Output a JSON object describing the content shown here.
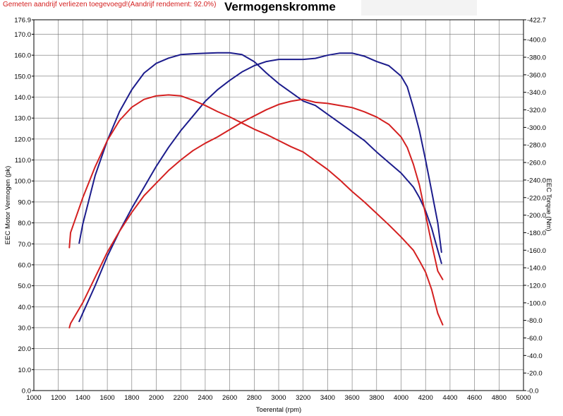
{
  "header": {
    "note": "Gemeten aandrijf verliezen toegevoegd!(Aandrijf rendement: 92.0%)",
    "title": "Vermogenskromme"
  },
  "colors": {
    "power_torque_before": "#1c1c8c",
    "power_torque_after": "#d42020",
    "grid": "#707070"
  },
  "chart_data": {
    "type": "line",
    "title": "Vermogenskromme",
    "xlabel": "Toerental (rpm)",
    "ylabel": "EEC Motor Vermogen (pk)",
    "y2label": "EEC Torque (Nm)",
    "xlim": [
      1000,
      5000
    ],
    "ylim": [
      0,
      176.9
    ],
    "y2lim": [
      0,
      422.7
    ],
    "grid": true,
    "x_ticks": [
      "1000",
      "1200",
      "1400",
      "1600",
      "1800",
      "2000",
      "2200",
      "2400",
      "2600",
      "2800",
      "3000",
      "3200",
      "3400",
      "3600",
      "3800",
      "4000",
      "4200",
      "4400",
      "4600",
      "4800",
      "5000"
    ],
    "y_ticks": [
      {
        "v": 0,
        "label": "0.0"
      },
      {
        "v": 10,
        "label": "10.0"
      },
      {
        "v": 20,
        "label": "20.0"
      },
      {
        "v": 30,
        "label": "30.0"
      },
      {
        "v": 40,
        "label": "40.0"
      },
      {
        "v": 50,
        "label": "50.0"
      },
      {
        "v": 60,
        "label": "60.0"
      },
      {
        "v": 70,
        "label": "70.0"
      },
      {
        "v": 80,
        "label": "80.0"
      },
      {
        "v": 90,
        "label": "90.0"
      },
      {
        "v": 100,
        "label": "100.0"
      },
      {
        "v": 110,
        "label": "110.0"
      },
      {
        "v": 120,
        "label": "120.0"
      },
      {
        "v": 130,
        "label": "130.0"
      },
      {
        "v": 140,
        "label": "140.0"
      },
      {
        "v": 150,
        "label": "150.0"
      },
      {
        "v": 160,
        "label": "160.0"
      },
      {
        "v": 170,
        "label": "170.0"
      },
      {
        "v": 176.9,
        "label": "176.9"
      }
    ],
    "y2_ticks": [
      {
        "v": 0,
        "label": "0.0"
      },
      {
        "v": 20,
        "label": "20.0"
      },
      {
        "v": 40,
        "label": "40.0"
      },
      {
        "v": 60,
        "label": "60.0"
      },
      {
        "v": 80,
        "label": "80.0"
      },
      {
        "v": 100,
        "label": "100.0"
      },
      {
        "v": 120,
        "label": "120.0"
      },
      {
        "v": 140,
        "label": "140.0"
      },
      {
        "v": 160,
        "label": "160.0"
      },
      {
        "v": 180,
        "label": "180.0"
      },
      {
        "v": 200,
        "label": "200.0"
      },
      {
        "v": 220,
        "label": "220.0"
      },
      {
        "v": 240,
        "label": "240.0"
      },
      {
        "v": 260,
        "label": "260.0"
      },
      {
        "v": 280,
        "label": "280.0"
      },
      {
        "v": 300,
        "label": "300.0"
      },
      {
        "v": 320,
        "label": "320.0"
      },
      {
        "v": 340,
        "label": "340.0"
      },
      {
        "v": 360,
        "label": "360.0"
      },
      {
        "v": 380,
        "label": "380.0"
      },
      {
        "v": 400,
        "label": "400.0"
      },
      {
        "v": 422.7,
        "label": "422.7"
      }
    ],
    "series": [
      {
        "color": "#1c1c8c",
        "axis": "left",
        "x": [
          1370,
          1400,
          1500,
          1600,
          1700,
          1800,
          1900,
          2000,
          2100,
          2200,
          2300,
          2400,
          2500,
          2600,
          2700,
          2800,
          2900,
          3000,
          3100,
          3200,
          3300,
          3400,
          3500,
          3600,
          3700,
          3800,
          3900,
          4000,
          4050,
          4100,
          4150,
          4200,
          4250,
          4300,
          4330
        ],
        "y": [
          33,
          37,
          50,
          64,
          76,
          87,
          97,
          107,
          116,
          124,
          131,
          138,
          143.5,
          148,
          152,
          155,
          157,
          158,
          158,
          158,
          158.5,
          160,
          161,
          161,
          159.5,
          157,
          155,
          150,
          145,
          135,
          124,
          110,
          95,
          80,
          66
        ]
      },
      {
        "color": "#1c1c8c",
        "axis": "right",
        "x": [
          1370,
          1400,
          1500,
          1600,
          1700,
          1800,
          1900,
          2000,
          2100,
          2200,
          2300,
          2400,
          2500,
          2600,
          2700,
          2800,
          2900,
          3000,
          3100,
          3200,
          3300,
          3400,
          3500,
          3600,
          3700,
          3800,
          3900,
          4000,
          4100,
          4150,
          4200,
          4250,
          4300,
          4330
        ],
        "y": [
          168,
          190,
          245,
          285,
          318,
          343,
          362,
          373,
          379,
          383,
          384,
          384.5,
          385,
          385,
          383,
          375,
          362,
          350,
          340,
          330,
          325,
          315,
          305,
          295,
          285,
          272,
          260,
          248,
          232,
          220,
          205,
          185,
          160,
          145
        ]
      },
      {
        "color": "#d42020",
        "axis": "left",
        "x": [
          1290,
          1300,
          1400,
          1500,
          1600,
          1700,
          1800,
          1900,
          2000,
          2100,
          2200,
          2300,
          2400,
          2500,
          2600,
          2700,
          2800,
          2900,
          3000,
          3100,
          3200,
          3300,
          3400,
          3500,
          3600,
          3700,
          3800,
          3900,
          4000,
          4050,
          4100,
          4150,
          4200,
          4250,
          4300,
          4340
        ],
        "y": [
          30,
          32,
          42,
          54,
          66,
          76,
          85,
          93,
          99,
          105,
          110,
          114.5,
          118,
          121,
          124.5,
          128,
          131,
          134,
          136.5,
          138,
          139,
          137.5,
          137,
          136,
          135,
          133,
          130.5,
          127,
          121,
          116,
          108,
          98,
          84,
          70,
          57,
          53
        ]
      },
      {
        "color": "#d42020",
        "axis": "right",
        "x": [
          1290,
          1300,
          1400,
          1500,
          1600,
          1700,
          1800,
          1900,
          2000,
          2100,
          2200,
          2300,
          2400,
          2500,
          2600,
          2700,
          2800,
          2900,
          3000,
          3100,
          3200,
          3300,
          3400,
          3500,
          3600,
          3700,
          3800,
          3900,
          4000,
          4100,
          4150,
          4200,
          4250,
          4300,
          4340
        ],
        "y": [
          163,
          180,
          220,
          255,
          285,
          308,
          323,
          332,
          336,
          337,
          336,
          331,
          325,
          318,
          312,
          305,
          298,
          292,
          285,
          278,
          272,
          262,
          252,
          240,
          227,
          215,
          202,
          189,
          175,
          160,
          148,
          135,
          115,
          88,
          75
        ]
      }
    ]
  }
}
